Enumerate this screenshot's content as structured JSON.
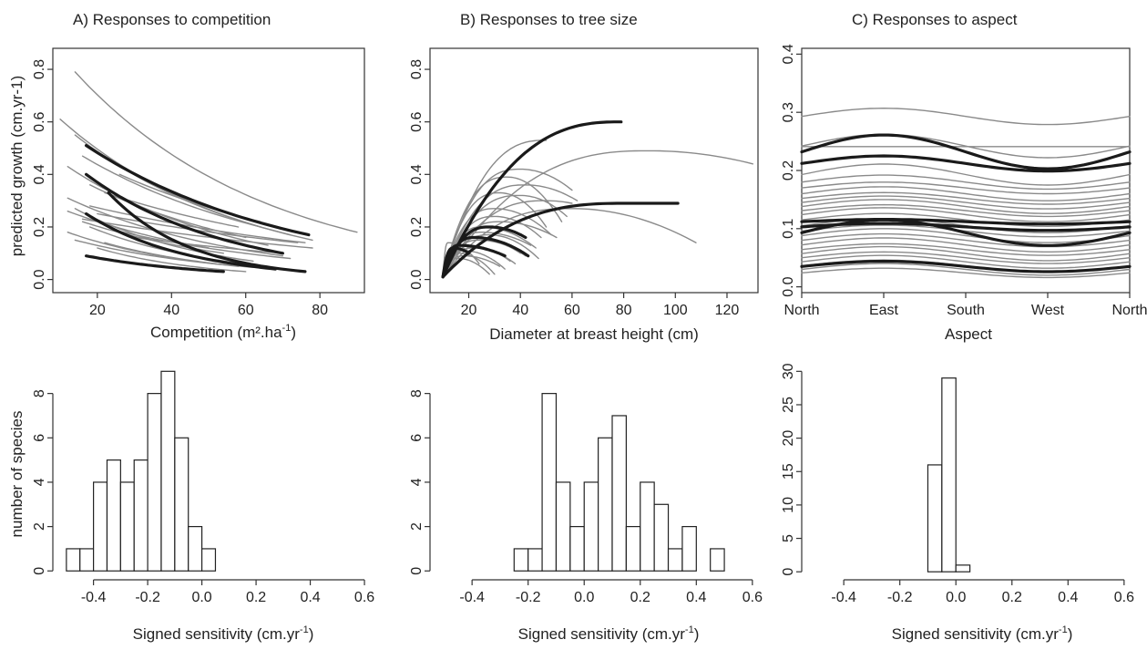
{
  "figure": {
    "panel_titles": [
      "A) Responses to competition",
      "B) Responses to tree size",
      "C) Responses to aspect"
    ],
    "line_colors": {
      "thin": "#8a8a8a",
      "thick": "#1a1a1a"
    }
  },
  "chart_data": [
    {
      "id": "A",
      "type": "line",
      "title": "A) Responses to competition",
      "xlabel": "Competition (m².ha",
      "xlabel_sup": "-1",
      "xlabel_end": ")",
      "ylabel": "predicted growth (cm.yr-1)",
      "xlim": [
        8,
        92
      ],
      "ylim": [
        -0.05,
        0.88
      ],
      "xticks": [
        20,
        40,
        60,
        80
      ],
      "yticks": [
        0.0,
        0.2,
        0.4,
        0.6,
        0.8
      ],
      "curve_form": "exponential decay",
      "series": [
        {
          "x0": 14,
          "x1": 90,
          "y0": 0.79,
          "y1": 0.18,
          "w": "thin"
        },
        {
          "x0": 10,
          "x1": 78,
          "y0": 0.61,
          "y1": 0.15,
          "w": "thin"
        },
        {
          "x0": 14,
          "x1": 72,
          "y0": 0.55,
          "y1": 0.17,
          "w": "thin"
        },
        {
          "x0": 12,
          "x1": 66,
          "y0": 0.43,
          "y1": 0.13,
          "w": "thin"
        },
        {
          "x0": 16,
          "x1": 64,
          "y0": 0.47,
          "y1": 0.2,
          "w": "thin"
        },
        {
          "x0": 18,
          "x1": 60,
          "y0": 0.36,
          "y1": 0.16,
          "w": "thin"
        },
        {
          "x0": 12,
          "x1": 70,
          "y0": 0.31,
          "y1": 0.09,
          "w": "thin"
        },
        {
          "x0": 14,
          "x1": 62,
          "y0": 0.27,
          "y1": 0.07,
          "w": "thin"
        },
        {
          "x0": 16,
          "x1": 78,
          "y0": 0.23,
          "y1": 0.12,
          "w": "thin"
        },
        {
          "x0": 18,
          "x1": 66,
          "y0": 0.2,
          "y1": 0.05,
          "w": "thin"
        },
        {
          "x0": 20,
          "x1": 74,
          "y0": 0.25,
          "y1": 0.14,
          "w": "thin"
        },
        {
          "x0": 12,
          "x1": 58,
          "y0": 0.18,
          "y1": 0.05,
          "w": "thin"
        },
        {
          "x0": 14,
          "x1": 68,
          "y0": 0.15,
          "y1": 0.04,
          "w": "thin"
        },
        {
          "x0": 22,
          "x1": 58,
          "y0": 0.33,
          "y1": 0.2,
          "w": "thin"
        },
        {
          "x0": 16,
          "x1": 54,
          "y0": 0.22,
          "y1": 0.1,
          "w": "thin"
        },
        {
          "x0": 20,
          "x1": 60,
          "y0": 0.12,
          "y1": 0.03,
          "w": "thin"
        },
        {
          "x0": 26,
          "x1": 64,
          "y0": 0.4,
          "y1": 0.22,
          "w": "thin"
        },
        {
          "x0": 18,
          "x1": 76,
          "y0": 0.28,
          "y1": 0.14,
          "w": "thin"
        },
        {
          "x0": 24,
          "x1": 72,
          "y0": 0.19,
          "y1": 0.08,
          "w": "thin"
        },
        {
          "x0": 30,
          "x1": 70,
          "y0": 0.16,
          "y1": 0.1,
          "w": "thin"
        },
        {
          "x0": 12,
          "x1": 50,
          "y0": 0.26,
          "y1": 0.12,
          "w": "thin"
        },
        {
          "x0": 22,
          "x1": 52,
          "y0": 0.14,
          "y1": 0.06,
          "w": "thin"
        },
        {
          "x0": 17,
          "x1": 77,
          "y0": 0.51,
          "y1": 0.17,
          "w": "thick"
        },
        {
          "x0": 17,
          "x1": 70,
          "y0": 0.4,
          "y1": 0.1,
          "w": "thick"
        },
        {
          "x0": 23,
          "x1": 76,
          "y0": 0.33,
          "y1": 0.03,
          "w": "thick"
        },
        {
          "x0": 17,
          "x1": 68,
          "y0": 0.25,
          "y1": 0.04,
          "w": "thick"
        },
        {
          "x0": 17,
          "x1": 54,
          "y0": 0.09,
          "y1": 0.03,
          "w": "thick"
        }
      ]
    },
    {
      "id": "B",
      "type": "line",
      "title": "B) Responses to tree size",
      "xlabel": "Diameter at breast height (cm)",
      "ylabel": "",
      "xlim": [
        5,
        132
      ],
      "ylim": [
        -0.05,
        0.88
      ],
      "xticks": [
        20,
        40,
        60,
        80,
        100,
        120
      ],
      "yticks": [
        0.0,
        0.2,
        0.4,
        0.6,
        0.8
      ],
      "curve_form": "saturating / hump-shaped from 10 cm",
      "series": [
        {
          "x1": 130,
          "top": 0.49,
          "xm": 90,
          "y1": 0.44,
          "w": "thin"
        },
        {
          "x1": 108,
          "top": 0.27,
          "xm": 60,
          "y1": 0.14,
          "w": "thin"
        },
        {
          "x1": 60,
          "top": 0.42,
          "xm": 40,
          "y1": 0.34,
          "w": "thin"
        },
        {
          "x1": 62,
          "top": 0.36,
          "xm": 42,
          "y1": 0.3,
          "w": "thin"
        },
        {
          "x1": 56,
          "top": 0.39,
          "xm": 35,
          "y1": 0.22,
          "w": "thin"
        },
        {
          "x1": 58,
          "top": 0.32,
          "xm": 40,
          "y1": 0.24,
          "w": "thin"
        },
        {
          "x1": 50,
          "top": 0.33,
          "xm": 32,
          "y1": 0.2,
          "w": "thin"
        },
        {
          "x1": 52,
          "top": 0.27,
          "xm": 30,
          "y1": 0.17,
          "w": "thin"
        },
        {
          "x1": 48,
          "top": 0.24,
          "xm": 30,
          "y1": 0.16,
          "w": "thin"
        },
        {
          "x1": 54,
          "top": 0.22,
          "xm": 32,
          "y1": 0.16,
          "w": "thin"
        },
        {
          "x1": 46,
          "top": 0.2,
          "xm": 25,
          "y1": 0.12,
          "w": "thin"
        },
        {
          "x1": 44,
          "top": 0.18,
          "xm": 25,
          "y1": 0.13,
          "w": "thin"
        },
        {
          "x1": 40,
          "top": 0.16,
          "xm": 22,
          "y1": 0.1,
          "w": "thin"
        },
        {
          "x1": 42,
          "top": 0.15,
          "xm": 24,
          "y1": 0.09,
          "w": "thin"
        },
        {
          "x1": 36,
          "top": 0.13,
          "xm": 20,
          "y1": 0.07,
          "w": "thin"
        },
        {
          "x1": 38,
          "top": 0.12,
          "xm": 22,
          "y1": 0.06,
          "w": "thin"
        },
        {
          "x1": 34,
          "top": 0.11,
          "xm": 18,
          "y1": 0.04,
          "w": "thin"
        },
        {
          "x1": 30,
          "top": 0.1,
          "xm": 16,
          "y1": 0.02,
          "w": "thin"
        },
        {
          "x1": 32,
          "top": 0.09,
          "xm": 18,
          "y1": 0.05,
          "w": "thin"
        },
        {
          "x1": 28,
          "top": 0.08,
          "xm": 16,
          "y1": 0.02,
          "w": "thin"
        },
        {
          "x1": 60,
          "top": 0.3,
          "xm": 50,
          "y1": 0.29,
          "w": "thin"
        },
        {
          "x1": 50,
          "top": 0.53,
          "xm": 50,
          "y1": 0.53,
          "w": "thin"
        },
        {
          "x1": 47,
          "top": 0.17,
          "xm": 28,
          "y1": 0.08,
          "w": "thin"
        },
        {
          "x1": 24,
          "top": 0.14,
          "xm": 12,
          "y1": 0.06,
          "w": "thin"
        },
        {
          "x1": 79,
          "top": 0.6,
          "xm": 79,
          "y1": 0.6,
          "w": "thick"
        },
        {
          "x1": 101,
          "top": 0.29,
          "xm": 80,
          "y1": 0.29,
          "w": "thick"
        },
        {
          "x1": 42,
          "top": 0.2,
          "xm": 28,
          "y1": 0.16,
          "w": "thick"
        },
        {
          "x1": 43,
          "top": 0.16,
          "xm": 22,
          "y1": 0.09,
          "w": "thick"
        },
        {
          "x1": 34,
          "top": 0.13,
          "xm": 16,
          "y1": 0.09,
          "w": "thick"
        },
        {
          "x1": 20,
          "top": 0.12,
          "xm": 14,
          "y1": 0.1,
          "w": "thick"
        }
      ]
    },
    {
      "id": "C",
      "type": "line",
      "title": "C) Responses to aspect",
      "xlabel": "Aspect",
      "ylabel": "",
      "xlim": [
        0,
        360
      ],
      "ylim": [
        -0.01,
        0.41
      ],
      "xtick_labels": [
        "North",
        "East",
        "South",
        "West",
        "North"
      ],
      "xticks": [
        0,
        90,
        180,
        270,
        360
      ],
      "yticks": [
        0.0,
        0.1,
        0.2,
        0.3,
        0.4
      ],
      "curve_form": "cosine in aspect, peak at East, minimum at West",
      "series": [
        {
          "mean": 0.293,
          "amp": 0.014,
          "w": "thin"
        },
        {
          "mean": 0.241,
          "amp": 0.0,
          "w": "thin"
        },
        {
          "mean": 0.242,
          "amp": 0.02,
          "w": "thin"
        },
        {
          "mean": 0.193,
          "amp": 0.018,
          "w": "thin"
        },
        {
          "mean": 0.18,
          "amp": 0.012,
          "w": "thin"
        },
        {
          "mean": 0.17,
          "amp": 0.01,
          "w": "thin"
        },
        {
          "mean": 0.16,
          "amp": 0.012,
          "w": "thin"
        },
        {
          "mean": 0.152,
          "amp": 0.01,
          "w": "thin"
        },
        {
          "mean": 0.145,
          "amp": 0.011,
          "w": "thin"
        },
        {
          "mean": 0.138,
          "amp": 0.012,
          "w": "thin"
        },
        {
          "mean": 0.131,
          "amp": 0.01,
          "w": "thin"
        },
        {
          "mean": 0.124,
          "amp": 0.012,
          "w": "thin"
        },
        {
          "mean": 0.115,
          "amp": 0.011,
          "w": "thin"
        },
        {
          "mean": 0.105,
          "amp": 0.012,
          "w": "thin"
        },
        {
          "mean": 0.096,
          "amp": 0.01,
          "w": "thin"
        },
        {
          "mean": 0.088,
          "amp": 0.012,
          "w": "thin"
        },
        {
          "mean": 0.08,
          "amp": 0.011,
          "w": "thin"
        },
        {
          "mean": 0.072,
          "amp": 0.012,
          "w": "thin"
        },
        {
          "mean": 0.064,
          "amp": 0.01,
          "w": "thin"
        },
        {
          "mean": 0.057,
          "amp": 0.012,
          "w": "thin"
        },
        {
          "mean": 0.05,
          "amp": 0.01,
          "w": "thin"
        },
        {
          "mean": 0.043,
          "amp": 0.011,
          "w": "thin"
        },
        {
          "mean": 0.036,
          "amp": 0.01,
          "w": "thin"
        },
        {
          "mean": 0.03,
          "amp": 0.01,
          "w": "thin"
        },
        {
          "mean": 0.024,
          "amp": 0.008,
          "w": "thin"
        },
        {
          "mean": 0.232,
          "amp": 0.029,
          "w": "thick"
        },
        {
          "mean": 0.212,
          "amp": 0.013,
          "w": "thick"
        },
        {
          "mean": 0.112,
          "amp": 0.004,
          "w": "thick"
        },
        {
          "mean": 0.103,
          "amp": 0.006,
          "w": "thick"
        },
        {
          "mean": 0.093,
          "amp": 0.022,
          "w": "thick"
        },
        {
          "mean": 0.035,
          "amp": 0.009,
          "w": "thick"
        }
      ]
    },
    {
      "id": "D",
      "type": "bar",
      "subtype": "histogram",
      "xlabel": "Signed sensitivity (cm.yr",
      "xlabel_sup": "-1",
      "xlabel_end": ")",
      "ylabel": "number of species",
      "xlim": [
        -0.55,
        0.62
      ],
      "ylim": [
        -0.4,
        9.3
      ],
      "xticks": [
        -0.4,
        -0.2,
        0.0,
        0.2,
        0.4,
        0.6
      ],
      "xtick_labels": [
        "-0.4",
        "-0.2",
        "0.0",
        "0.2",
        "0.4",
        "0.6"
      ],
      "yticks": [
        0,
        2,
        4,
        6,
        8
      ],
      "bin_start": -0.5,
      "bin_width": 0.05,
      "counts": [
        1,
        1,
        4,
        5,
        4,
        5,
        8,
        9,
        6,
        2,
        1
      ]
    },
    {
      "id": "E",
      "type": "bar",
      "subtype": "histogram",
      "xlabel": "Signed sensitivity (cm.yr",
      "xlabel_sup": "-1",
      "xlabel_end": ")",
      "ylabel": "",
      "xlim": [
        -0.55,
        0.62
      ],
      "ylim": [
        -0.4,
        9.3
      ],
      "xticks": [
        -0.4,
        -0.2,
        0.0,
        0.2,
        0.4,
        0.6
      ],
      "xtick_labels": [
        "-0.4",
        "-0.2",
        "0.0",
        "0.2",
        "0.4",
        "0.6"
      ],
      "yticks": [
        0,
        2,
        4,
        6,
        8
      ],
      "bin_start": -0.25,
      "bin_width": 0.05,
      "counts": [
        1,
        1,
        8,
        4,
        2,
        4,
        6,
        7,
        2,
        4,
        3,
        1,
        2,
        0,
        1
      ]
    },
    {
      "id": "F",
      "type": "bar",
      "subtype": "histogram",
      "xlabel": "Signed sensitivity (cm.yr",
      "xlabel_sup": "-1",
      "xlabel_end": ")",
      "ylabel": "",
      "xlim": [
        -0.55,
        0.62
      ],
      "ylim": [
        -1.2,
        31
      ],
      "xticks": [
        -0.4,
        -0.2,
        0.0,
        0.2,
        0.4,
        0.6
      ],
      "xtick_labels": [
        "-0.4",
        "-0.2",
        "0.0",
        "0.2",
        "0.4",
        "0.6"
      ],
      "yticks": [
        0,
        5,
        10,
        15,
        20,
        25,
        30
      ],
      "bin_start": -0.1,
      "bin_width": 0.05,
      "counts": [
        16,
        29,
        1
      ]
    }
  ]
}
